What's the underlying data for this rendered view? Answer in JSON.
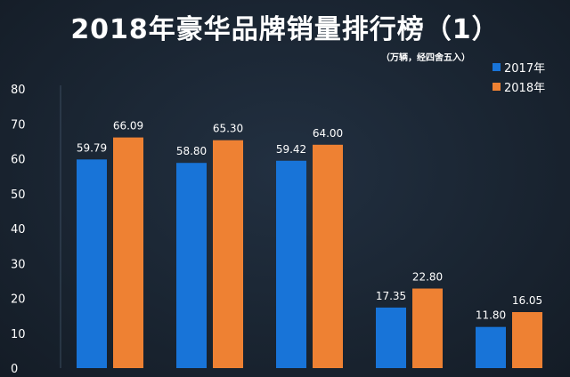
{
  "chart_data": {
    "type": "bar",
    "title": "2018年豪华品牌销量排行榜（1）",
    "subtitle": "（万辆，经四舍五入）",
    "categories": [
      "",
      "",
      "",
      "",
      ""
    ],
    "series": [
      {
        "name": "2017年",
        "color": "#1874d8",
        "values": [
          59.79,
          58.8,
          59.42,
          17.35,
          11.8
        ]
      },
      {
        "name": "2018年",
        "color": "#ee8133",
        "values": [
          66.09,
          65.3,
          64.0,
          22.8,
          16.05
        ]
      }
    ],
    "data_labels": [
      [
        "59.79",
        "58.80",
        "59.42",
        "17.35",
        "11.80"
      ],
      [
        "66.09",
        "65.30",
        "64.00",
        "22.80",
        "16.05"
      ]
    ],
    "ylim": [
      0,
      80
    ],
    "yticks": [
      "0",
      "10",
      "20",
      "30",
      "40",
      "50",
      "60",
      "70",
      "80"
    ],
    "grid": false,
    "legend_position": "top-right"
  }
}
